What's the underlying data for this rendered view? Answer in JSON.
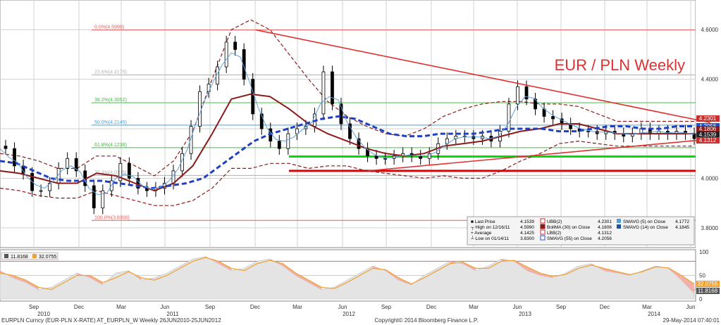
{
  "chart_data": [
    {
      "type": "candlestick",
      "title": "EUR / PLN Weekly",
      "x_ticks": {
        "months": [
          "Sep",
          "Dec",
          "Mar",
          "Jun",
          "Sep",
          "Dec",
          "Mar",
          "Jun",
          "Sep",
          "Dec",
          "Mar",
          "Jun",
          "Sep",
          "Dec",
          "Mar",
          "Jun"
        ],
        "years": [
          "2010",
          "2011",
          "2012",
          "2013",
          "2014"
        ]
      },
      "y_ticks": [
        "4.6000",
        "4.4000",
        "4.2000",
        "4.0000",
        "3.8000"
      ],
      "ylim": [
        3.72,
        4.72
      ],
      "fibonacci": [
        {
          "label": "0.0%(4.5990)",
          "value": 4.599,
          "color": "#e06060"
        },
        {
          "label": "23.6%(4.4175)",
          "value": 4.4175,
          "color": "#b0b0b0"
        },
        {
          "label": "38.2%(4.3052)",
          "value": 4.3052,
          "color": "#40c040"
        },
        {
          "label": "50.0%(4.2145)",
          "value": 4.2145,
          "color": "#40a0e0"
        },
        {
          "label": "61.8%(4.1238)",
          "value": 4.1238,
          "color": "#40c040"
        },
        {
          "label": "76.4%(4.0115)",
          "value": 4.0115,
          "color": "#b0b0b0"
        },
        {
          "label": "100.0%(3.8300)",
          "value": 3.83,
          "color": "#e06060"
        }
      ],
      "support_lines": [
        {
          "value": 4.088,
          "color": "#00e000"
        },
        {
          "value": 4.03,
          "color": "#e00000"
        }
      ],
      "trendlines": [
        {
          "from": [
            0.355,
            4.599
          ],
          "to": [
            0.985,
            4.225
          ]
        },
        {
          "from": [
            0.51,
            4.03
          ],
          "to": [
            0.985,
            4.158
          ]
        }
      ],
      "price_labels": [
        {
          "text": "4.2301",
          "color": "#c83030"
        },
        {
          "text": "4.2056",
          "color": "#2050c8"
        },
        {
          "text": "4.1806",
          "color": "#8b1a1a"
        },
        {
          "text": "4.1539",
          "color": "#222222"
        },
        {
          "text": "4.1312",
          "color": "#c83030"
        }
      ],
      "legend": {
        "col1": [
          {
            "label": "Last Price",
            "value": "4.1539"
          },
          {
            "label": "High on 12/16/11",
            "value": "4.5990"
          },
          {
            "label": "Average",
            "value": "4.1425"
          },
          {
            "label": "Low on 01/14/11",
            "value": "3.8300"
          }
        ],
        "col2": [
          {
            "label": "UBB(2)",
            "value": "4.2301",
            "color": "#c83030"
          },
          {
            "label": "BollMA (30) on Close",
            "value": "4.1806",
            "color": "#8b1a1a"
          },
          {
            "label": "LBB(2)",
            "value": "4.1312",
            "color": "#c83030"
          },
          {
            "label": "SMAVG (55) on Close",
            "value": "4.2056",
            "color": "#2050c8"
          }
        ],
        "col3": [
          {
            "label": "SMAVG (5) on Close",
            "value": "4.1772",
            "color": "#50a0e0"
          },
          {
            "label": "SMAVG (14) on Close",
            "value": "4.1845",
            "color": "#2050a0"
          }
        ]
      },
      "series": [
        {
          "name": "Last Price",
          "values": [
            4.12,
            4.05,
            4.02,
            3.95,
            3.95,
            3.98,
            4.04,
            4.08,
            4.03,
            3.97,
            3.88,
            3.95,
            3.99,
            4.06,
            4.0,
            3.96,
            3.95,
            3.96,
            3.98,
            4.03,
            4.1,
            4.21,
            4.35,
            4.38,
            4.45,
            4.55,
            4.52,
            4.4,
            4.26,
            4.2,
            4.15,
            4.12,
            4.18,
            4.2,
            4.21,
            4.26,
            4.43,
            4.3,
            4.22,
            4.16,
            4.12,
            4.09,
            4.08,
            4.08,
            4.09,
            4.1,
            4.09,
            4.08,
            4.1,
            4.14,
            4.16,
            4.17,
            4.17,
            4.16,
            4.17,
            4.15,
            4.19,
            4.3,
            4.37,
            4.32,
            4.28,
            4.25,
            4.24,
            4.22,
            4.2,
            4.19,
            4.19,
            4.18,
            4.19,
            4.18,
            4.17,
            4.18,
            4.2,
            4.18,
            4.19,
            4.18,
            4.19,
            4.18,
            4.16
          ]
        },
        {
          "name": "SMAVG (55) on Close",
          "values": [
            4.07,
            4.06,
            4.03,
            4.0,
            3.99,
            3.99,
            3.99,
            3.98,
            3.97,
            3.96,
            3.97,
            3.98,
            4.0,
            4.05,
            4.1,
            4.15,
            4.18,
            4.2,
            4.22,
            4.24,
            4.25,
            4.24,
            4.21,
            4.18,
            4.17,
            4.17,
            4.18,
            4.18,
            4.18,
            4.19,
            4.2,
            4.2,
            4.2,
            4.19,
            4.19,
            4.2,
            4.21,
            4.21,
            4.2,
            4.2,
            4.21,
            4.21
          ]
        },
        {
          "name": "BollMA (30) on Close",
          "values": [
            4.03,
            4.02,
            4.0,
            3.98,
            3.98,
            4.02,
            4.01,
            3.98,
            3.95,
            3.98,
            4.05,
            4.18,
            4.32,
            4.34,
            4.33,
            4.28,
            4.22,
            4.18,
            4.15,
            4.12,
            4.1,
            4.09,
            4.1,
            4.13,
            4.14,
            4.15,
            4.17,
            4.19,
            4.2,
            4.22,
            4.22,
            4.2,
            4.18,
            4.18,
            4.18,
            4.18,
            4.18
          ]
        }
      ]
    },
    {
      "type": "line",
      "title": "",
      "legend": [
        {
          "value": "11.8168",
          "color": "#555555"
        },
        {
          "value": "32.0755",
          "color": "#f0a030"
        }
      ],
      "y_ticks": [
        "100",
        "50",
        "0"
      ],
      "ylim": [
        0,
        100
      ],
      "levels": [
        {
          "value": 80,
          "color": "#e06060"
        },
        {
          "value": 20,
          "color": "#40c040"
        }
      ],
      "price_labels": [
        {
          "text": "32.0755",
          "color": "#f0a030"
        },
        {
          "text": "11.8168",
          "color": "#555555"
        }
      ],
      "series": [
        {
          "name": "11.8168",
          "values": [
            60,
            45,
            35,
            20,
            25,
            40,
            55,
            45,
            30,
            55,
            60,
            40,
            45,
            55,
            70,
            85,
            90,
            75,
            60,
            65,
            80,
            85,
            70,
            50,
            35,
            20,
            25,
            40,
            55,
            70,
            60,
            40,
            30,
            50,
            65,
            80,
            75,
            60,
            70,
            85,
            80,
            60,
            50,
            45,
            55,
            70,
            75,
            60,
            55,
            50,
            60,
            70,
            65,
            40,
            12
          ]
        },
        {
          "name": "32.0755",
          "values": [
            55,
            50,
            40,
            25,
            20,
            35,
            50,
            50,
            35,
            45,
            58,
            45,
            40,
            50,
            65,
            80,
            88,
            80,
            65,
            60,
            75,
            82,
            75,
            55,
            40,
            25,
            22,
            35,
            50,
            65,
            62,
            45,
            32,
            45,
            60,
            75,
            78,
            65,
            65,
            80,
            82,
            68,
            55,
            48,
            52,
            65,
            72,
            65,
            58,
            52,
            58,
            68,
            66,
            50,
            32
          ]
        }
      ]
    }
  ],
  "footer": {
    "left": "EURPLN Curncy (EUR-PLN X-RATE) AT_EURPLN_W  Weekly 26JUN2010-25JUN2012",
    "center": "Copyright© 2014 Bloomberg Finance L.P.",
    "right": "29-May-2014 07:40:01"
  },
  "colors": {
    "candle_up": "#ffffff",
    "candle_down": "#000000",
    "grid": "#d0d0d0",
    "bands": "#8b1a1a",
    "sma55": "#2040c0",
    "bollma": "#8b1a1a",
    "sma5": "#60a0e0",
    "trend": "#e03030",
    "title": "#e03030"
  }
}
